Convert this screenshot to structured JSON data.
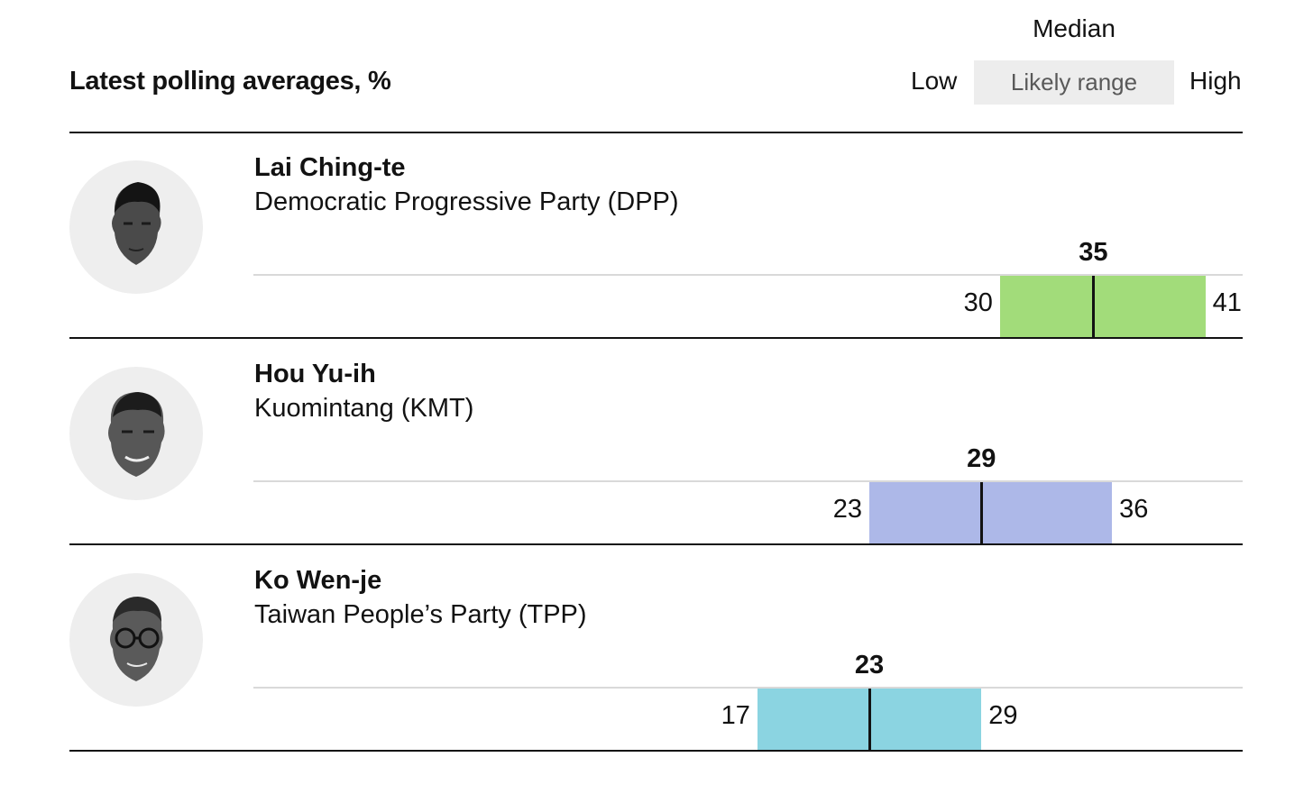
{
  "header": {
    "title": "Latest polling averages, %",
    "key": {
      "median": "Median",
      "low": "Low",
      "range": "Likely range",
      "high": "High"
    }
  },
  "colors": {
    "DPP": "#a2dc7a",
    "KMT": "#adb8e8",
    "TPP": "#8bd4e1",
    "median": "#121212"
  },
  "candidates": [
    {
      "name": "Lai Ching-te",
      "party": "Democratic Progressive Party (DPP)",
      "color": "#a2dc7a",
      "low": "30",
      "median": "35",
      "high": "41"
    },
    {
      "name": "Hou Yu-ih",
      "party": "Kuomintang (KMT)",
      "color": "#adb8e8",
      "low": "23",
      "median": "29",
      "high": "36"
    },
    {
      "name": "Ko Wen-je",
      "party": "Taiwan People’s Party (TPP)",
      "color": "#8bd4e1",
      "low": "17",
      "median": "23",
      "high": "29"
    }
  ],
  "chart_data": {
    "type": "bar",
    "title": "Latest polling averages, %",
    "categories": [
      "Lai Ching-te",
      "Hou Yu-ih",
      "Ko Wen-je"
    ],
    "series": [
      {
        "name": "Low",
        "values": [
          30,
          23,
          17
        ]
      },
      {
        "name": "Median",
        "values": [
          35,
          29,
          23
        ]
      },
      {
        "name": "High",
        "values": [
          41,
          36,
          29
        ]
      }
    ],
    "xlim": [
      -10,
      43
    ],
    "legend": "top-right"
  }
}
